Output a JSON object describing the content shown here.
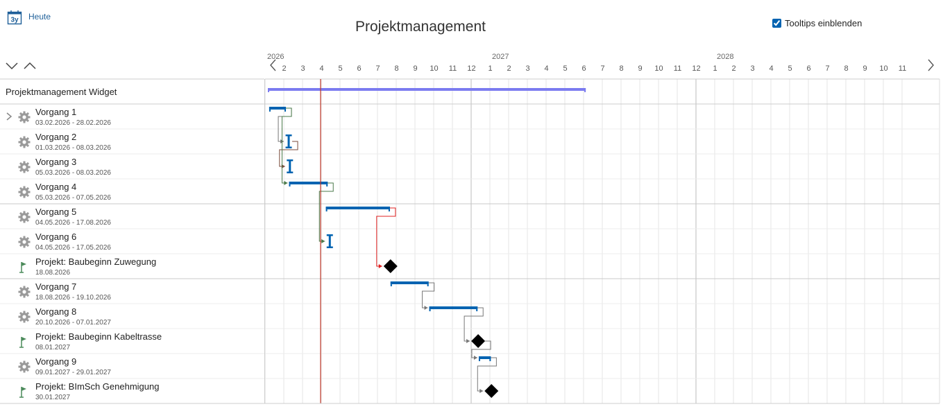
{
  "header": {
    "today_label": "Heute",
    "calendar_icon_text": "3y",
    "title": "Projektmanagement",
    "tooltips_label": "Tooltips einblenden",
    "tooltips_checked": true
  },
  "timeline": {
    "years": [
      {
        "label": "2026",
        "month_index": 0
      },
      {
        "label": "2027",
        "month_index": 12
      },
      {
        "label": "2028",
        "month_index": 24
      }
    ],
    "month_labels": [
      "2",
      "3",
      "4",
      "5",
      "6",
      "7",
      "8",
      "9",
      "10",
      "11",
      "12",
      "1",
      "2",
      "3",
      "4",
      "5",
      "6",
      "7",
      "8",
      "9",
      "10",
      "11",
      "12",
      "1",
      "2",
      "3",
      "4",
      "5",
      "6",
      "7",
      "8",
      "9",
      "10",
      "11"
    ],
    "start_month": 1,
    "today_month": 4,
    "today_day": 1
  },
  "project": {
    "name": "Projektmanagement Widget",
    "start": "2026-02-01",
    "end": "2027-06-30"
  },
  "tasks": [
    {
      "name": "Vorgang 1",
      "dates": "03.02.2026 - 28.02.2026",
      "type": "task",
      "expandable": true,
      "start": "2026-02-03",
      "end": "2026-02-28",
      "group_end": false
    },
    {
      "name": "Vorgang 2",
      "dates": "01.03.2026 - 08.03.2026",
      "type": "task",
      "expandable": false,
      "start": "2026-03-01",
      "end": "2026-03-08",
      "group_end": false
    },
    {
      "name": "Vorgang 3",
      "dates": "05.03.2026 - 08.03.2026",
      "type": "task",
      "expandable": false,
      "start": "2026-03-05",
      "end": "2026-03-08",
      "group_end": false
    },
    {
      "name": "Vorgang 4",
      "dates": "05.03.2026 - 07.05.2026",
      "type": "task",
      "expandable": false,
      "start": "2026-03-05",
      "end": "2026-05-07",
      "group_end": true
    },
    {
      "name": "Vorgang 5",
      "dates": "04.05.2026 - 17.08.2026",
      "type": "task",
      "expandable": false,
      "start": "2026-05-04",
      "end": "2026-08-17",
      "group_end": false
    },
    {
      "name": "Vorgang 6",
      "dates": "04.05.2026 - 17.05.2026",
      "type": "task",
      "expandable": false,
      "start": "2026-05-04",
      "end": "2026-05-17",
      "group_end": false
    },
    {
      "name": "Projekt: Baubeginn Zuwegung",
      "dates": "18.08.2026",
      "type": "milestone",
      "expandable": false,
      "start": "2026-08-18",
      "end": "2026-08-18",
      "group_end": true
    },
    {
      "name": "Vorgang 7",
      "dates": "18.08.2026 - 19.10.2026",
      "type": "task",
      "expandable": false,
      "start": "2026-08-18",
      "end": "2026-10-19",
      "group_end": false
    },
    {
      "name": "Vorgang 8",
      "dates": "20.10.2026 - 07.01.2027",
      "type": "task",
      "expandable": false,
      "start": "2026-10-20",
      "end": "2027-01-07",
      "group_end": false
    },
    {
      "name": "Projekt: Baubeginn Kabeltrasse",
      "dates": "08.01.2027",
      "type": "milestone",
      "expandable": false,
      "start": "2027-01-08",
      "end": "2027-01-08",
      "group_end": false
    },
    {
      "name": "Vorgang 9",
      "dates": "09.01.2027 - 29.01.2027",
      "type": "task",
      "expandable": false,
      "start": "2027-01-09",
      "end": "2027-01-29",
      "group_end": false
    },
    {
      "name": "Projekt: BImSch Genehmigung",
      "dates": "30.01.2027",
      "type": "milestone",
      "expandable": false,
      "start": "2027-01-30",
      "end": "2027-01-30",
      "group_end": true
    }
  ],
  "dependencies": [
    {
      "from": 0,
      "to": 1,
      "color": "#777777"
    },
    {
      "from": 1,
      "to": 2,
      "color": "#7a4a3a"
    },
    {
      "from": 0,
      "to": 3,
      "color": "#4a7a4a"
    },
    {
      "from": 3,
      "to": 5,
      "color": "#4a7a4a"
    },
    {
      "from": 4,
      "to": 6,
      "color": "#e02020"
    },
    {
      "from": 7,
      "to": 8,
      "color": "#777777"
    },
    {
      "from": 8,
      "to": 9,
      "color": "#777777"
    },
    {
      "from": 9,
      "to": 10,
      "color": "#777777"
    },
    {
      "from": 10,
      "to": 11,
      "color": "#777777"
    }
  ],
  "colors": {
    "task_bar": "#0063b1",
    "project_bar": "#7b7bf0",
    "today_line": "#c0392b",
    "grid": "#e6e6e6",
    "milestone": "#000000",
    "gear": "#9a9a9a",
    "flag": "#4b8a5a"
  },
  "icons": {
    "task": "gear-icon",
    "milestone": "flag-icon",
    "expand": "chevron-right-icon",
    "collapse_all": "chevron-down-icon",
    "expand_all": "chevron-up-icon",
    "prev": "chevron-left-icon",
    "next": "chevron-right-icon",
    "today": "calendar-icon"
  }
}
